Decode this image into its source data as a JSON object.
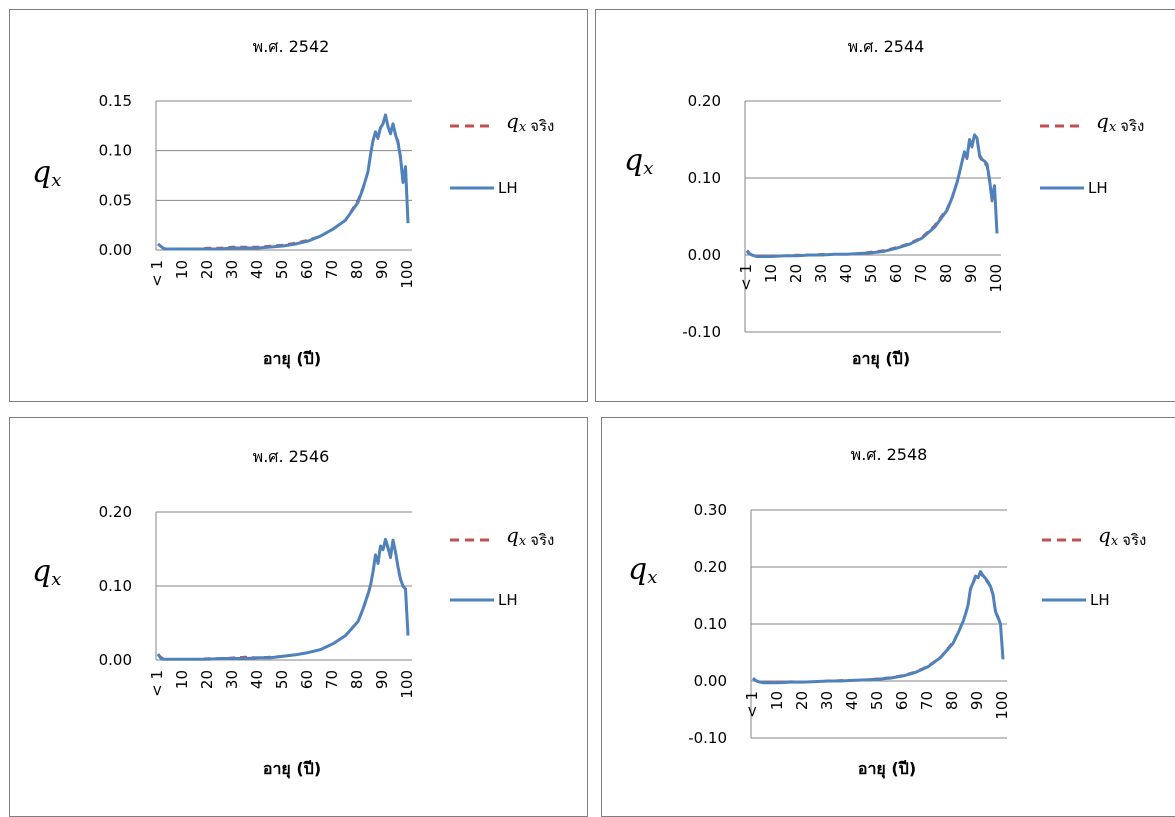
{
  "charts": [
    {
      "title": "พ.ศ. 2542",
      "yticks": [
        "0.15",
        "0.10",
        "0.05",
        "0.00"
      ]
    },
    {
      "title": "พ.ศ. 2544",
      "yticks": [
        "0.20",
        "0.10",
        "0.00",
        "-0.10"
      ]
    },
    {
      "title": "พ.ศ. 2546",
      "yticks": [
        "0.20",
        "0.10",
        "0.00"
      ]
    },
    {
      "title": "พ.ศ. 2548",
      "yticks": [
        "0.30",
        "0.20",
        "0.10",
        "0.00",
        "-0.10"
      ]
    }
  ],
  "common": {
    "xlabel": "อายุ (ปี)",
    "ylabel_main": "q",
    "ylabel_sub": "x",
    "xticks": [
      "< 1",
      "10",
      "20",
      "30",
      "40",
      "50",
      "60",
      "70",
      "80",
      "90",
      "100"
    ],
    "legend_actual_q": "q",
    "legend_actual_sub": "x",
    "legend_actual_word": "จริง",
    "legend_lh": "LH"
  },
  "chart_data": [
    {
      "type": "line",
      "title": "พ.ศ. 2542",
      "xlabel": "อายุ (ปี)",
      "ylabel": "qx",
      "ylim": [
        0,
        0.15
      ],
      "grid": true,
      "legend": "right",
      "x": [
        0,
        1,
        2,
        3,
        4,
        5,
        10,
        15,
        20,
        25,
        30,
        35,
        40,
        45,
        50,
        55,
        60,
        65,
        70,
        75,
        80,
        82,
        84,
        85,
        86,
        87,
        88,
        89,
        90,
        91,
        92,
        93,
        94,
        95,
        96,
        97,
        98,
        99,
        100
      ],
      "series": [
        {
          "name": "qx จริง",
          "color": "#c0504d",
          "dash": true,
          "values": [
            0.006,
            0.004,
            0.002,
            0.001,
            0.001,
            0.001,
            0.001,
            0.001,
            0.002,
            0.002,
            0.003,
            0.003,
            0.003,
            0.004,
            0.005,
            0.007,
            0.01,
            0.014,
            0.021,
            0.03,
            0.05,
            0.063,
            0.078,
            0.095,
            0.11,
            0.118,
            0.112,
            0.124,
            0.128,
            0.135,
            0.125,
            0.118,
            0.126,
            0.117,
            0.11,
            0.095,
            0.07,
            0.085,
            0.03
          ]
        },
        {
          "name": "LH",
          "color": "#4f81bd",
          "dash": false,
          "values": [
            0.006,
            0.004,
            0.002,
            0.001,
            0.001,
            0.001,
            0.001,
            0.001,
            0.001,
            0.001,
            0.002,
            0.002,
            0.002,
            0.003,
            0.004,
            0.006,
            0.009,
            0.014,
            0.021,
            0.03,
            0.048,
            0.062,
            0.079,
            0.096,
            0.11,
            0.119,
            0.113,
            0.123,
            0.127,
            0.136,
            0.124,
            0.117,
            0.127,
            0.116,
            0.108,
            0.093,
            0.068,
            0.084,
            0.027
          ]
        }
      ]
    },
    {
      "type": "line",
      "title": "พ.ศ. 2544",
      "xlabel": "อายุ (ปี)",
      "ylabel": "qx",
      "ylim": [
        -0.1,
        0.2
      ],
      "grid": true,
      "legend": "right",
      "x": [
        0,
        1,
        2,
        3,
        4,
        5,
        10,
        15,
        20,
        25,
        30,
        35,
        40,
        45,
        50,
        55,
        60,
        65,
        70,
        75,
        80,
        82,
        84,
        85,
        86,
        87,
        88,
        89,
        90,
        91,
        92,
        93,
        94,
        95,
        96,
        97,
        98,
        99,
        100
      ],
      "series": [
        {
          "name": "qx จริง",
          "color": "#c0504d",
          "dash": true,
          "values": [
            0.004,
            0.001,
            0.0,
            -0.001,
            -0.001,
            -0.001,
            -0.001,
            -0.001,
            0.0,
            0.0,
            0.001,
            0.001,
            0.001,
            0.002,
            0.004,
            0.006,
            0.01,
            0.015,
            0.023,
            0.038,
            0.06,
            0.075,
            0.095,
            0.108,
            0.12,
            0.132,
            0.125,
            0.148,
            0.14,
            0.155,
            0.15,
            0.128,
            0.122,
            0.12,
            0.115,
            0.095,
            0.07,
            0.088,
            0.03
          ]
        },
        {
          "name": "LH",
          "color": "#4f81bd",
          "dash": false,
          "values": [
            0.006,
            0.002,
            0.0,
            -0.001,
            -0.002,
            -0.002,
            -0.002,
            -0.001,
            -0.001,
            0.0,
            0.0,
            0.001,
            0.001,
            0.002,
            0.003,
            0.005,
            0.009,
            0.014,
            0.022,
            0.036,
            0.058,
            0.074,
            0.094,
            0.107,
            0.121,
            0.134,
            0.126,
            0.15,
            0.141,
            0.156,
            0.152,
            0.13,
            0.124,
            0.122,
            0.118,
            0.098,
            0.072,
            0.09,
            0.028
          ]
        }
      ]
    },
    {
      "type": "line",
      "title": "พ.ศ. 2546",
      "xlabel": "อายุ (ปี)",
      "ylabel": "qx",
      "ylim": [
        0,
        0.2
      ],
      "grid": true,
      "legend": "right",
      "x": [
        0,
        1,
        2,
        3,
        4,
        5,
        10,
        15,
        20,
        25,
        30,
        35,
        40,
        45,
        50,
        55,
        60,
        65,
        70,
        75,
        80,
        82,
        84,
        85,
        86,
        87,
        88,
        89,
        90,
        91,
        92,
        93,
        94,
        95,
        96,
        97,
        98,
        99,
        100
      ],
      "series": [
        {
          "name": "qx จริง",
          "color": "#c0504d",
          "dash": true,
          "values": [
            0.008,
            0.004,
            0.002,
            0.001,
            0.001,
            0.001,
            0.001,
            0.001,
            0.002,
            0.002,
            0.003,
            0.004,
            0.003,
            0.004,
            0.005,
            0.007,
            0.01,
            0.014,
            0.022,
            0.033,
            0.052,
            0.068,
            0.088,
            0.1,
            0.118,
            0.14,
            0.13,
            0.152,
            0.148,
            0.162,
            0.15,
            0.138,
            0.16,
            0.145,
            0.125,
            0.108,
            0.1,
            0.095,
            0.035
          ]
        },
        {
          "name": "LH",
          "color": "#4f81bd",
          "dash": false,
          "values": [
            0.008,
            0.003,
            0.001,
            0.001,
            0.001,
            0.001,
            0.001,
            0.001,
            0.001,
            0.002,
            0.002,
            0.002,
            0.003,
            0.003,
            0.005,
            0.007,
            0.01,
            0.014,
            0.022,
            0.033,
            0.052,
            0.069,
            0.089,
            0.101,
            0.119,
            0.142,
            0.131,
            0.154,
            0.149,
            0.163,
            0.152,
            0.139,
            0.162,
            0.146,
            0.126,
            0.109,
            0.1,
            0.096,
            0.033
          ]
        }
      ]
    },
    {
      "type": "line",
      "title": "พ.ศ. 2548",
      "xlabel": "อายุ (ปี)",
      "ylabel": "qx",
      "ylim": [
        -0.1,
        0.3
      ],
      "grid": true,
      "legend": "right",
      "x": [
        0,
        1,
        2,
        3,
        4,
        5,
        10,
        15,
        20,
        25,
        30,
        35,
        40,
        45,
        50,
        55,
        60,
        65,
        70,
        75,
        80,
        82,
        84,
        85,
        86,
        87,
        88,
        89,
        90,
        91,
        92,
        93,
        94,
        95,
        96,
        97,
        98,
        99,
        100
      ],
      "series": [
        {
          "name": "qx จริง",
          "color": "#c0504d",
          "dash": true,
          "values": [
            0.004,
            0.001,
            -0.001,
            -0.002,
            -0.002,
            -0.002,
            -0.002,
            -0.001,
            -0.002,
            -0.001,
            0.0,
            0.001,
            0.001,
            0.002,
            0.004,
            0.006,
            0.01,
            0.016,
            0.026,
            0.042,
            0.068,
            0.085,
            0.105,
            0.118,
            0.132,
            0.16,
            0.17,
            0.182,
            0.18,
            0.19,
            0.183,
            0.178,
            0.172,
            0.165,
            0.15,
            0.12,
            0.11,
            0.1,
            0.04
          ]
        },
        {
          "name": "LH",
          "color": "#4f81bd",
          "dash": false,
          "values": [
            0.005,
            0.001,
            -0.001,
            -0.002,
            -0.003,
            -0.003,
            -0.003,
            -0.002,
            -0.002,
            -0.001,
            0.0,
            0.0,
            0.001,
            0.002,
            0.003,
            0.005,
            0.009,
            0.015,
            0.025,
            0.041,
            0.066,
            0.084,
            0.104,
            0.117,
            0.133,
            0.162,
            0.172,
            0.184,
            0.181,
            0.192,
            0.185,
            0.18,
            0.174,
            0.166,
            0.152,
            0.122,
            0.112,
            0.1,
            0.038
          ]
        }
      ]
    }
  ]
}
